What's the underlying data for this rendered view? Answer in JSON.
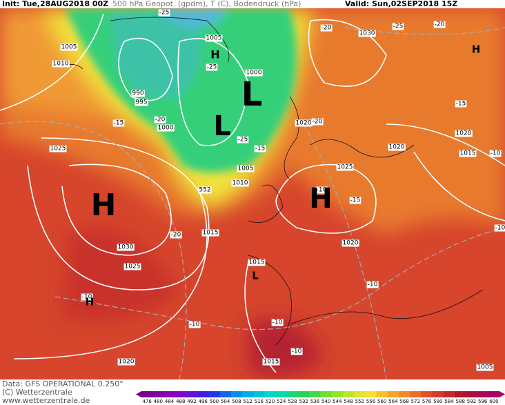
{
  "header": {
    "init": "Init: Tue,28AUG2018 00Z",
    "title": "500 hPa Geopot. (gpdm), T (C), Bodendruck (hPa)",
    "valid": "Valid: Sun,02SEP2018 15Z"
  },
  "footer": {
    "data": "Data: GFS OPERATIONAL 0.250°",
    "copyright": "(C) Wetterzentrale",
    "url": "www.wetterzentrale.de"
  },
  "colorbar": {
    "labels": [
      "476",
      "480",
      "484",
      "488",
      "492",
      "496",
      "500",
      "504",
      "508",
      "512",
      "516",
      "520",
      "524",
      "528",
      "532",
      "536",
      "540",
      "544",
      "548",
      "552",
      "556",
      "560",
      "564",
      "568",
      "572",
      "576",
      "580",
      "584",
      "588",
      "592",
      "596",
      "600"
    ]
  },
  "map": {
    "pressure_labels": [
      "1005",
      "1010",
      "990",
      "995",
      "1000",
      "1005",
      "1000",
      "1020",
      "1030",
      "1025",
      "1005",
      "1010",
      "552",
      "1015",
      "1030",
      "1025",
      "1025",
      "1020",
      "1020",
      "1015",
      "1020",
      "1015",
      "1015",
      "1020",
      "1005"
    ],
    "temperature_labels": [
      "-25",
      "-20",
      "-25",
      "-20",
      "-25",
      "-20",
      "-15",
      "-20",
      "-25",
      "-15",
      "-15",
      "-10",
      "-10",
      "-15",
      "-20",
      "-10",
      "-10",
      "-10",
      "-10",
      "-10",
      "-10"
    ],
    "pressure_centers": [
      "H",
      "H",
      "L",
      "L",
      "H",
      "H",
      "H",
      "L"
    ]
  }
}
